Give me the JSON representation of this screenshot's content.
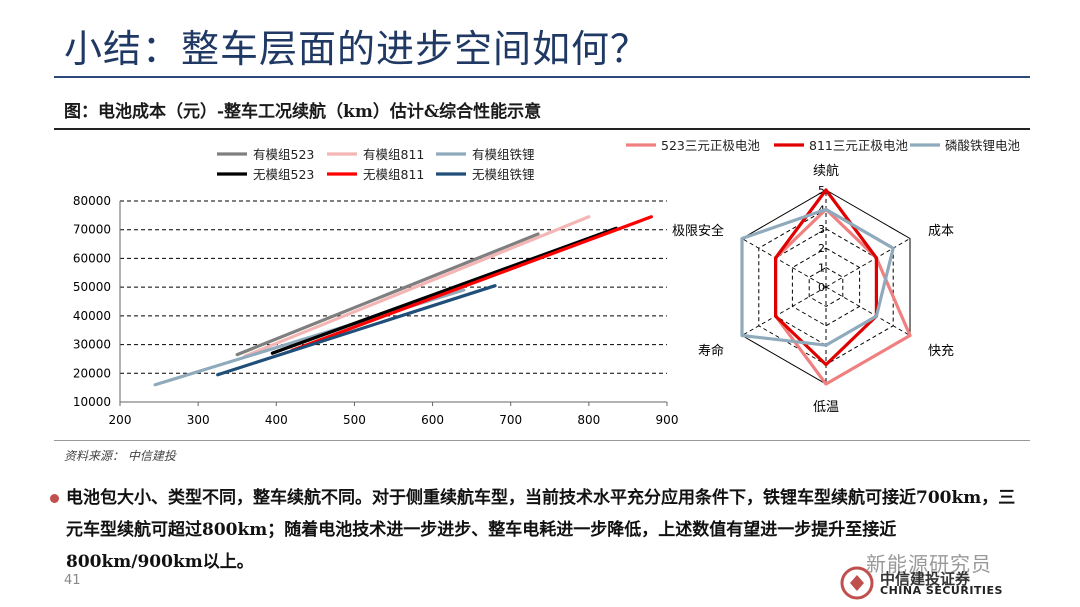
{
  "header": {
    "title": "小结：整车层面的进步空间如何？",
    "figure_caption": "图：电池成本（元）-整车工况续航（km）估计&综合性能示意"
  },
  "source": "资料来源：   中信建投",
  "bullet_text": "电池包大小、类型不同，整车续航不同。对于侧重续航车型，当前技术水平充分应用条件下，铁锂车型续航可接近700km，三元车型续航可超过800km；随着电池技术进一步进步、整车电耗进一步降低，上述数值有望进一步提升至接近800km/900km以上。",
  "page_number": "41",
  "logo": {
    "watermark": "新能源研究员",
    "brand_cn": "中信建投证券",
    "brand_en": "CHINA SECURITIES"
  },
  "chart_data": [
    {
      "type": "line",
      "title": "",
      "xlabel": "",
      "ylabel": "",
      "xlim": [
        200,
        900
      ],
      "ylim": [
        10000,
        80000
      ],
      "x_ticks": [
        "200",
        "300",
        "400",
        "500",
        "600",
        "700",
        "800",
        "900"
      ],
      "y_ticks": [
        "10000",
        "20000",
        "30000",
        "40000",
        "50000",
        "60000",
        "70000",
        "80000"
      ],
      "grid": "horizontal-dashed",
      "legend_position": "top",
      "series": [
        {
          "name": "有模组523",
          "color": "#7f7f7f",
          "points": [
            [
              350,
              26500
            ],
            [
              735,
              68500
            ]
          ]
        },
        {
          "name": "有模组811",
          "color": "#f4b6b5",
          "points": [
            [
              360,
              26000
            ],
            [
              800,
              74500
            ]
          ]
        },
        {
          "name": "有模组铁锂",
          "color": "#8faabc",
          "points": [
            [
              245,
              16000
            ],
            [
              640,
              49000
            ]
          ]
        },
        {
          "name": "无模组523",
          "color": "#000000",
          "points": [
            [
              395,
              27000
            ],
            [
              835,
              70500
            ]
          ]
        },
        {
          "name": "无模组811",
          "color": "#ff0000",
          "points": [
            [
              420,
              28000
            ],
            [
              880,
              74500
            ]
          ]
        },
        {
          "name": "无模组铁锂",
          "color": "#1f4e79",
          "points": [
            [
              325,
              19500
            ],
            [
              680,
              50500
            ]
          ]
        }
      ]
    },
    {
      "type": "radar",
      "axes": [
        "续航",
        "成本",
        "快充",
        "低温",
        "寿命",
        "极限安全"
      ],
      "rmax": 5,
      "r_ticks": [
        "0",
        "1",
        "2",
        "3",
        "4",
        "5"
      ],
      "legend_position": "top",
      "series": [
        {
          "name": "523三元正极电池",
          "color": "#f08080",
          "values": [
            4,
            3,
            5,
            5,
            3,
            3
          ]
        },
        {
          "name": "811三元正极电池",
          "color": "#e00000",
          "values": [
            5,
            3,
            3,
            4,
            3,
            3
          ]
        },
        {
          "name": "磷酸铁锂电池",
          "color": "#8faabc",
          "values": [
            4,
            4,
            3,
            3,
            5,
            5
          ]
        }
      ]
    }
  ]
}
